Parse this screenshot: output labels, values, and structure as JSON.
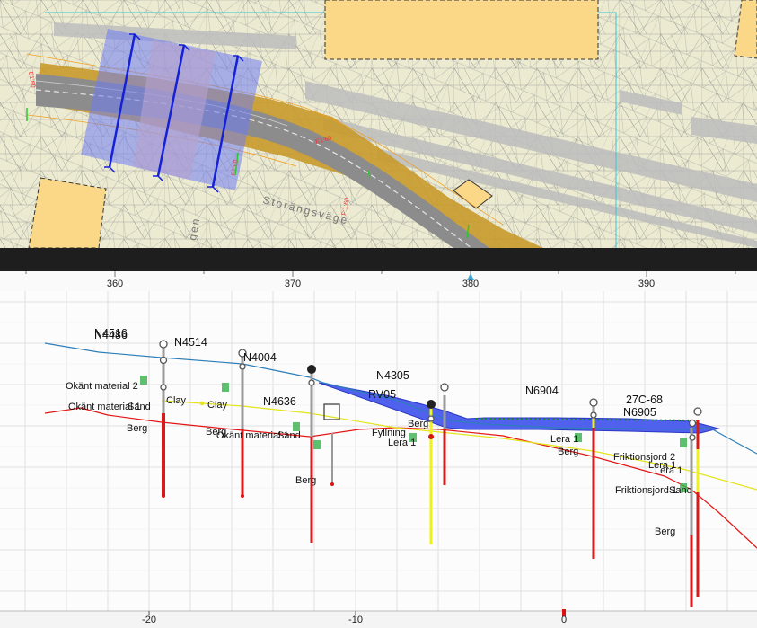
{
  "plan": {
    "street_name": "Storängsväge",
    "street_name_2": "gen",
    "colors": {
      "background": "#ecebd2",
      "building": "#fbd887",
      "road": "#8c8c8c",
      "pad": "#c99a2b",
      "overlay": "#6f7bf2",
      "tin": "#8a8a8a"
    }
  },
  "ruler": {
    "ticks": [
      {
        "label": "360",
        "value": 360
      },
      {
        "label": "370",
        "value": 370
      },
      {
        "label": "380",
        "value": 380
      },
      {
        "label": "390",
        "value": 390
      }
    ]
  },
  "profile": {
    "x_axis": {
      "ticks": [
        {
          "label": "-20",
          "value": -20
        },
        {
          "label": "-10",
          "value": -10
        },
        {
          "label": "0",
          "value": 0
        }
      ]
    },
    "boreholes": [
      {
        "id": "N4516",
        "id_overlay": "N4486"
      },
      {
        "id": "N4514"
      },
      {
        "id": "N4004"
      },
      {
        "id": "N4636"
      },
      {
        "id": "N4305"
      },
      {
        "id": "RV05"
      },
      {
        "id": "N6904"
      },
      {
        "id": "27C-68"
      },
      {
        "id": "N6905"
      }
    ],
    "materials": {
      "okant_2": "Okänt material 2",
      "okant": "Okänt material 1",
      "sand": "Sand",
      "clay_1": "Clay",
      "clay_2": "Clay",
      "berg_1": "Berg",
      "berg_2": "Berg",
      "okant_mid": "Okänt material 1",
      "sand_mid": "Sand",
      "berg_3": "Berg",
      "fyllning": "Fyllning",
      "berg_4": "Berg",
      "lera_1a": "Lera 1",
      "lera_1b": "Lera 1",
      "berg_5": "Berg",
      "friktion_2": "Friktionsjord 2",
      "lera_1c": "Lera 1",
      "lera_1d": "Lera 1",
      "friktion_1": "Friktionsjord 1",
      "sand_r": "Sand",
      "berg_6": "Berg"
    },
    "colors": {
      "terrain": "#2e7eb8",
      "rock": "#e41515",
      "clay_line": "#e4e41a",
      "fill_body": "#5061ee",
      "rod": "#9a9a9a"
    }
  }
}
